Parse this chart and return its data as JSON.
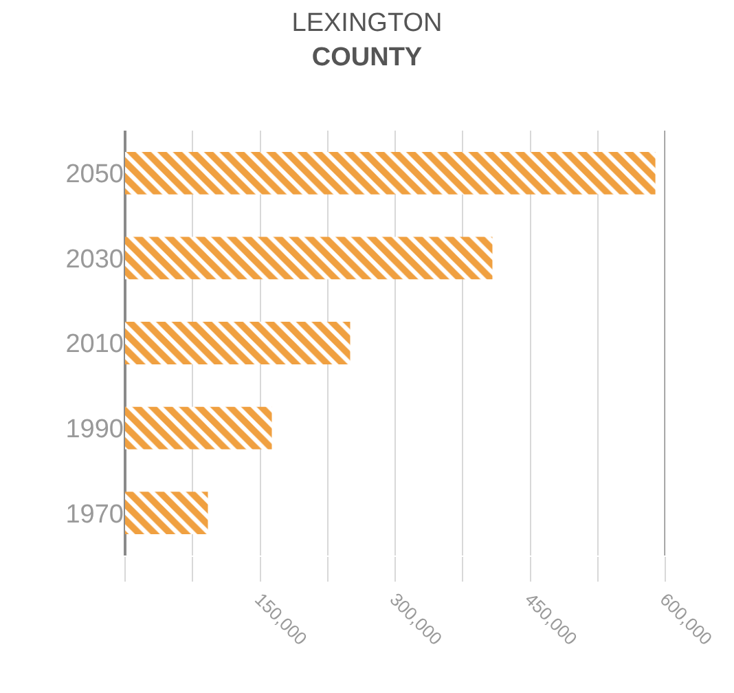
{
  "chart_data": {
    "type": "bar",
    "orientation": "horizontal",
    "title": "LEXINGTON\nCOUNTY",
    "categories": [
      "2050",
      "2030",
      "2010",
      "1990",
      "1970"
    ],
    "values": [
      589000,
      408000,
      250000,
      163000,
      92000
    ],
    "color": "#f0a040",
    "xlim": [
      0,
      600000
    ],
    "xticks": [
      {
        "value": 0,
        "label": null
      },
      {
        "value": 75000,
        "label": null
      },
      {
        "value": 150000,
        "label": "150,000"
      },
      {
        "value": 225000,
        "label": null
      },
      {
        "value": 300000,
        "label": "300,000"
      },
      {
        "value": 375000,
        "label": null
      },
      {
        "value": 450000,
        "label": "450,000"
      },
      {
        "value": 525000,
        "label": null
      },
      {
        "value": 600000,
        "label": "600,000"
      }
    ],
    "grid": "x"
  }
}
